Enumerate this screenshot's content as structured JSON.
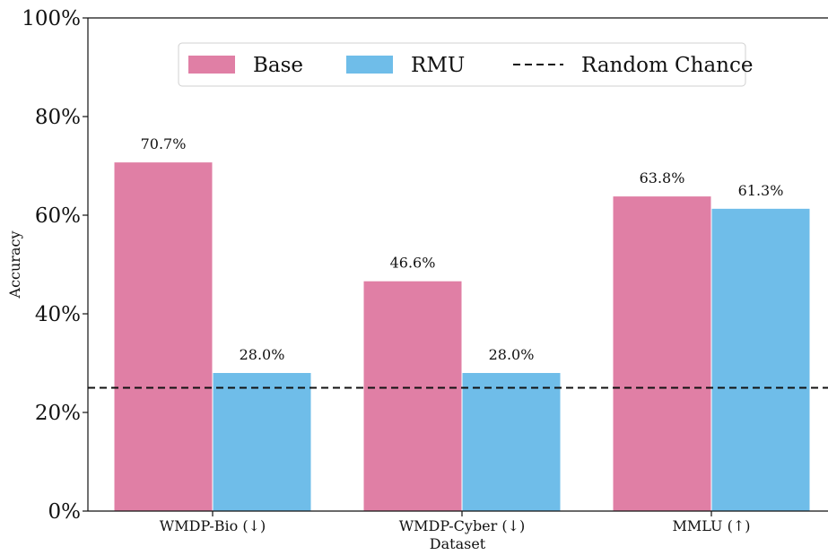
{
  "chart_data": {
    "type": "bar",
    "xlabel": "Dataset",
    "ylabel": "Accuracy",
    "categories": [
      "WMDP-Bio (↓)",
      "WMDP-Cyber (↓)",
      "MMLU (↑)"
    ],
    "series": [
      {
        "name": "Base",
        "color": "#e07fa5",
        "values": [
          70.7,
          46.6,
          63.8
        ],
        "value_labels": [
          "70.7%",
          "46.6%",
          "63.8%"
        ]
      },
      {
        "name": "RMU",
        "color": "#6fbde9",
        "values": [
          28.0,
          28.0,
          61.3
        ],
        "value_labels": [
          "28.0%",
          "28.0%",
          "61.3%"
        ]
      }
    ],
    "reference_line": {
      "name": "Random Chance",
      "value": 25,
      "style": "dashed",
      "color": "#111111"
    },
    "ylim": [
      0,
      100
    ],
    "yticks": [
      0,
      20,
      40,
      60,
      80,
      100
    ],
    "ytick_labels": [
      "0%",
      "20%",
      "40%",
      "60%",
      "80%",
      "100%"
    ],
    "legend_position": "top-center",
    "grid": false
  }
}
